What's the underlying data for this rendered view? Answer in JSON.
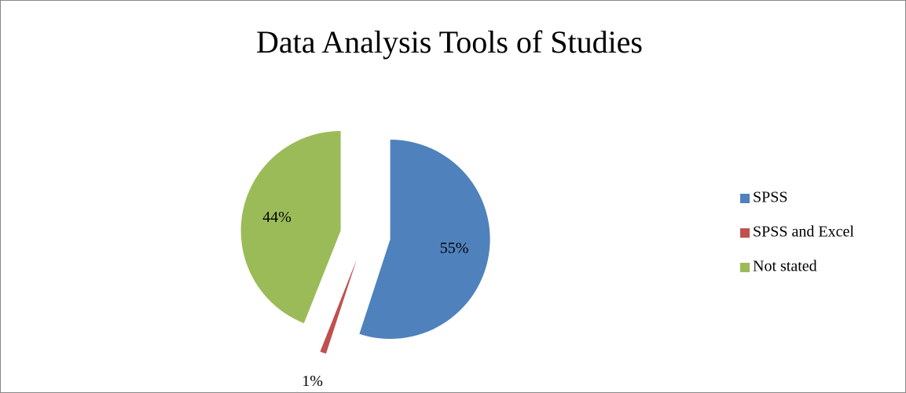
{
  "chart_data": {
    "type": "pie",
    "title": "Data Analysis Tools of Studies",
    "categories": [
      "SPSS",
      "SPSS and Excel",
      "Not stated"
    ],
    "values": [
      55,
      1,
      44
    ],
    "value_labels": [
      "55%",
      "1%",
      "44%"
    ],
    "colors": [
      "#4f81bd",
      "#c0504d",
      "#9bbb59"
    ],
    "legend": "right"
  }
}
